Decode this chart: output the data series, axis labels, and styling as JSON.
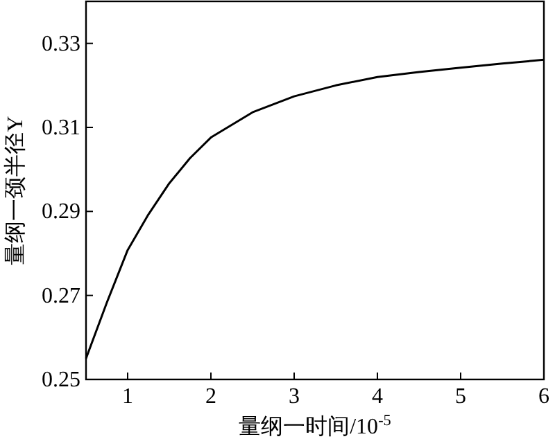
{
  "chart_data": {
    "type": "line",
    "xlabel": "量纲一时间/10$^{-5}$",
    "ylabel": "量纲一颈半径Y",
    "xlim": [
      0.5,
      6
    ],
    "ylim": [
      0.25,
      0.34
    ],
    "xticks": [
      1,
      2,
      3,
      4,
      5,
      6
    ],
    "yticks": [
      0.25,
      0.27,
      0.29,
      0.31,
      0.33
    ],
    "grid": false,
    "series": [
      {
        "color": "#000000",
        "x": [
          0.5,
          0.75,
          1,
          1.25,
          1.5,
          1.75,
          2,
          2.5,
          3,
          3.5,
          4,
          4.5,
          5,
          5.5,
          6
        ],
        "values": [
          0.255,
          0.2683,
          0.2808,
          0.2893,
          0.2967,
          0.3027,
          0.3076,
          0.3136,
          0.3174,
          0.32,
          0.322,
          0.3232,
          0.3242,
          0.3252,
          0.3261
        ]
      }
    ]
  }
}
